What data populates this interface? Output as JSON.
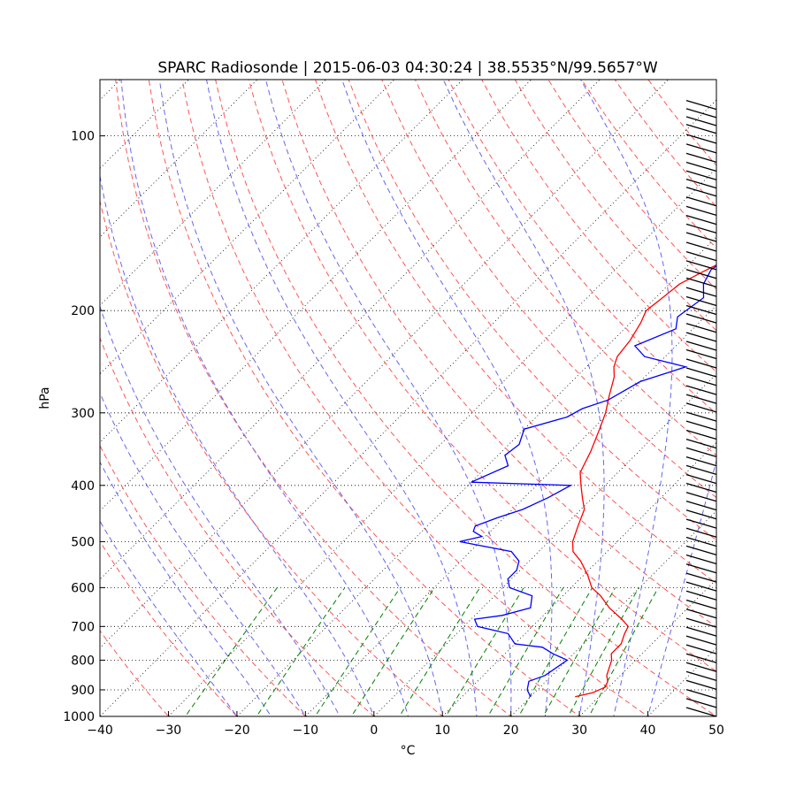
{
  "chart_data": {
    "type": "line",
    "title": "SPARC Radiosonde | 2015-06-03 04:30:24 | 38.5535°N/99.5657°W",
    "xlabel": "°C",
    "ylabel": "hPa",
    "xlim": [
      -40,
      50
    ],
    "ylim": [
      1000,
      80
    ],
    "y_scale": "log",
    "x_ticks": [
      -40,
      -30,
      -20,
      -10,
      0,
      10,
      20,
      30,
      40,
      50
    ],
    "x_tick_labels": [
      "−40",
      "−30",
      "−20",
      "−10",
      "0",
      "10",
      "20",
      "30",
      "40",
      "50"
    ],
    "y_ticks": [
      100,
      200,
      300,
      400,
      500,
      600,
      700,
      800,
      900,
      1000
    ],
    "y_tick_labels": [
      "100",
      "200",
      "300",
      "400",
      "500",
      "600",
      "700",
      "800",
      "900",
      "1000"
    ],
    "grid": true,
    "reference_lines": {
      "isotherms_color": "#000000",
      "dry_adiabats_color": "#ff5555",
      "moist_adiabats_color": "#6666ee",
      "mixing_ratio_color": "#008000"
    },
    "series": [
      {
        "color": "#ff0000",
        "pressure": [
          925,
          910,
          890,
          870,
          850,
          800,
          780,
          750,
          720,
          700,
          680,
          650,
          620,
          600,
          570,
          540,
          520,
          500,
          470,
          440,
          420,
          400,
          380,
          350,
          320,
          300,
          280,
          260,
          250,
          240,
          225,
          210,
          200,
          190,
          180,
          172,
          165,
          155,
          148,
          140,
          132,
          125,
          118,
          112,
          108,
          105,
          103,
          101,
          99
        ],
        "temperature": [
          26.5,
          28.5,
          29.5,
          29.0,
          28.0,
          26.5,
          25.5,
          25.5,
          24.5,
          24.0,
          22.0,
          18.5,
          15.5,
          13.0,
          10.5,
          7.5,
          5.0,
          3.5,
          2.0,
          0.5,
          -1.5,
          -3.5,
          -5.5,
          -7.0,
          -9.0,
          -10.5,
          -12.5,
          -14.5,
          -16.0,
          -17.0,
          -17.5,
          -18.5,
          -19.5,
          -19.0,
          -18.5,
          -17.0,
          -15.5,
          -13.5,
          -11.5,
          -10.0,
          -8.5,
          -6.5,
          -5.5,
          -4.0,
          -2.5,
          -2.0,
          -1.5,
          -2.0,
          -3.0
        ]
      },
      {
        "color": "#0000ff",
        "pressure": [
          925,
          900,
          870,
          850,
          800,
          780,
          760,
          750,
          720,
          700,
          680,
          670,
          650,
          620,
          600,
          580,
          560,
          540,
          520,
          500,
          490,
          480,
          470,
          455,
          440,
          420,
          400,
          395,
          370,
          355,
          340,
          320,
          305,
          295,
          285,
          265,
          250,
          240,
          230,
          215,
          205,
          190,
          180,
          170,
          160,
          150,
          140,
          130,
          122,
          115,
          110,
          105,
          100,
          99
        ],
        "temperature": [
          20.0,
          18.5,
          17.5,
          19.0,
          20.0,
          17.0,
          14.5,
          10.0,
          7.5,
          2.0,
          0.5,
          4.0,
          7.0,
          5.5,
          1.0,
          -0.5,
          -0.5,
          -1.5,
          -4.0,
          -13.0,
          -10.5,
          -12.5,
          -13.0,
          -11.0,
          -8.5,
          -6.5,
          -5.0,
          -20.0,
          -17.0,
          -19.0,
          -18.5,
          -20.0,
          -15.5,
          -14.5,
          -12.0,
          -10.0,
          -5.5,
          -13.0,
          -16.0,
          -12.5,
          -14.0,
          -13.0,
          -15.0,
          -16.0,
          -15.0,
          -17.0,
          -18.0,
          -17.5,
          -19.0,
          -19.5,
          -18.0,
          -15.5,
          -13.0,
          -12.5
        ]
      }
    ]
  }
}
